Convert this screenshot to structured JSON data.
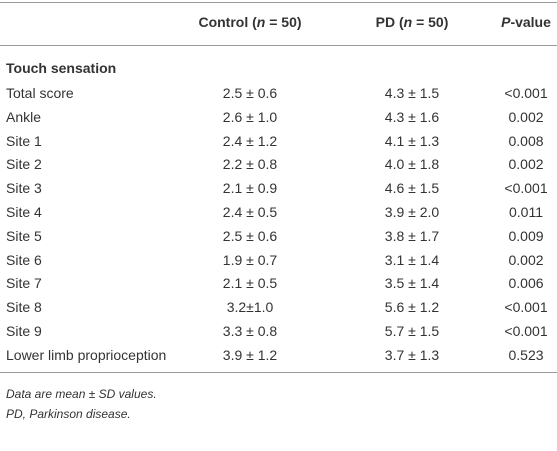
{
  "table": {
    "header": [
      {
        "parts": [
          "Control (",
          "n",
          " = 50)"
        ]
      },
      {
        "parts": [
          "PD (",
          "n",
          " = 50)"
        ]
      },
      {
        "parts": [
          "P",
          "-value"
        ]
      }
    ],
    "section": "Touch sensation",
    "rows": [
      [
        "Total score",
        "2.5 ± 0.6",
        "4.3 ± 1.5",
        "<0.001"
      ],
      [
        "Ankle",
        "2.6 ± 1.0",
        "4.3 ± 1.6",
        "0.002"
      ],
      [
        "Site 1",
        "2.4 ± 1.2",
        "4.1 ± 1.3",
        "0.008"
      ],
      [
        "Site 2",
        "2.2 ± 0.8",
        "4.0 ± 1.8",
        "0.002"
      ],
      [
        "Site 3",
        "2.1 ± 0.9",
        "4.6 ± 1.5",
        "<0.001"
      ],
      [
        "Site 4",
        "2.4 ± 0.5",
        "3.9 ± 2.0",
        "0.011"
      ],
      [
        "Site 5",
        "2.5 ± 0.6",
        "3.8 ± 1.7",
        "0.009"
      ],
      [
        "Site 6",
        "1.9 ± 0.7",
        "3.1 ± 1.4",
        "0.002"
      ],
      [
        "Site 7",
        "2.1 ± 0.5",
        "3.5 ± 1.4",
        "0.006"
      ],
      [
        "Site 8",
        "3.2±1.0",
        "5.6 ± 1.2",
        "<0.001"
      ],
      [
        "Site 9",
        "3.3 ± 0.8",
        "5.7 ± 1.5",
        "<0.001"
      ],
      [
        "Lower limb proprioception",
        "3.9 ± 1.2",
        "3.7 ± 1.3",
        "0.523"
      ]
    ]
  },
  "notes": [
    "Data are mean ± SD values.",
    "PD, Parkinson disease."
  ]
}
